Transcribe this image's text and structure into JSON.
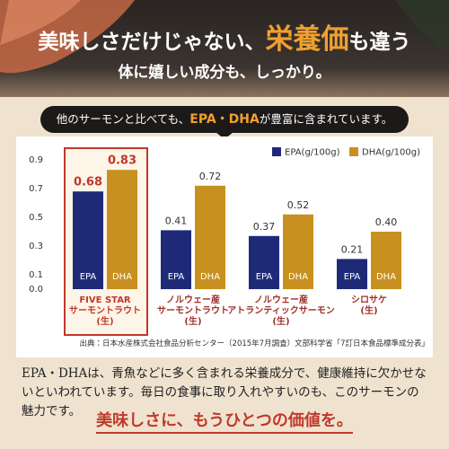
{
  "header": {
    "title_pre": "美味しさだけじゃない、",
    "title_highlight": "栄養価",
    "title_post": "も違う",
    "subtitle": "体に嬉しい成分も、しっかり。"
  },
  "banner": {
    "pre": "他のサーモンと比べても、",
    "highlight": "EPA・DHA",
    "post": "が豊富に含まれています。"
  },
  "chart_data": {
    "type": "bar",
    "categories": [
      "FIVE STAR\nサーモントラウト\n(生)",
      "ノルウェー産\nサーモントラウト\n(生)",
      "ノルウェー産\nアトランティックサーモン\n(生)",
      "シロサケ\n(生)"
    ],
    "series": [
      {
        "name": "EPA(g/100g)",
        "label": "EPA",
        "color": "#1e2a78",
        "values": [
          0.68,
          0.41,
          0.37,
          0.21
        ]
      },
      {
        "name": "DHA(g/100g)",
        "label": "DHA",
        "color": "#c8901e",
        "values": [
          0.83,
          0.72,
          0.52,
          0.4
        ],
        "value_labels": [
          "0.83",
          "0.72",
          "0.52",
          "0.40"
        ]
      }
    ],
    "ylim": [
      0,
      0.9
    ],
    "yticks": [
      {
        "value": 0,
        "label": "0.0"
      },
      0.1,
      0.3,
      0.5,
      0.7,
      0.9
    ],
    "grid": false,
    "legend": "top-right",
    "highlight_category": 0,
    "highlight_color": "#c0392b",
    "source": "出典：日本水産株式会社食品分析センター（2015年7月調査）文部科学省「7訂日本食品標準成分表」"
  },
  "footer": {
    "body": "EPA・DHAは、青魚などに多く含まれる栄養成分で、健康維持に欠かせないといわれています。毎日の食事に取り入れやすいのも、このサーモンの魅力です。",
    "tagline": "美味しさに、もうひとつの価値を。"
  }
}
